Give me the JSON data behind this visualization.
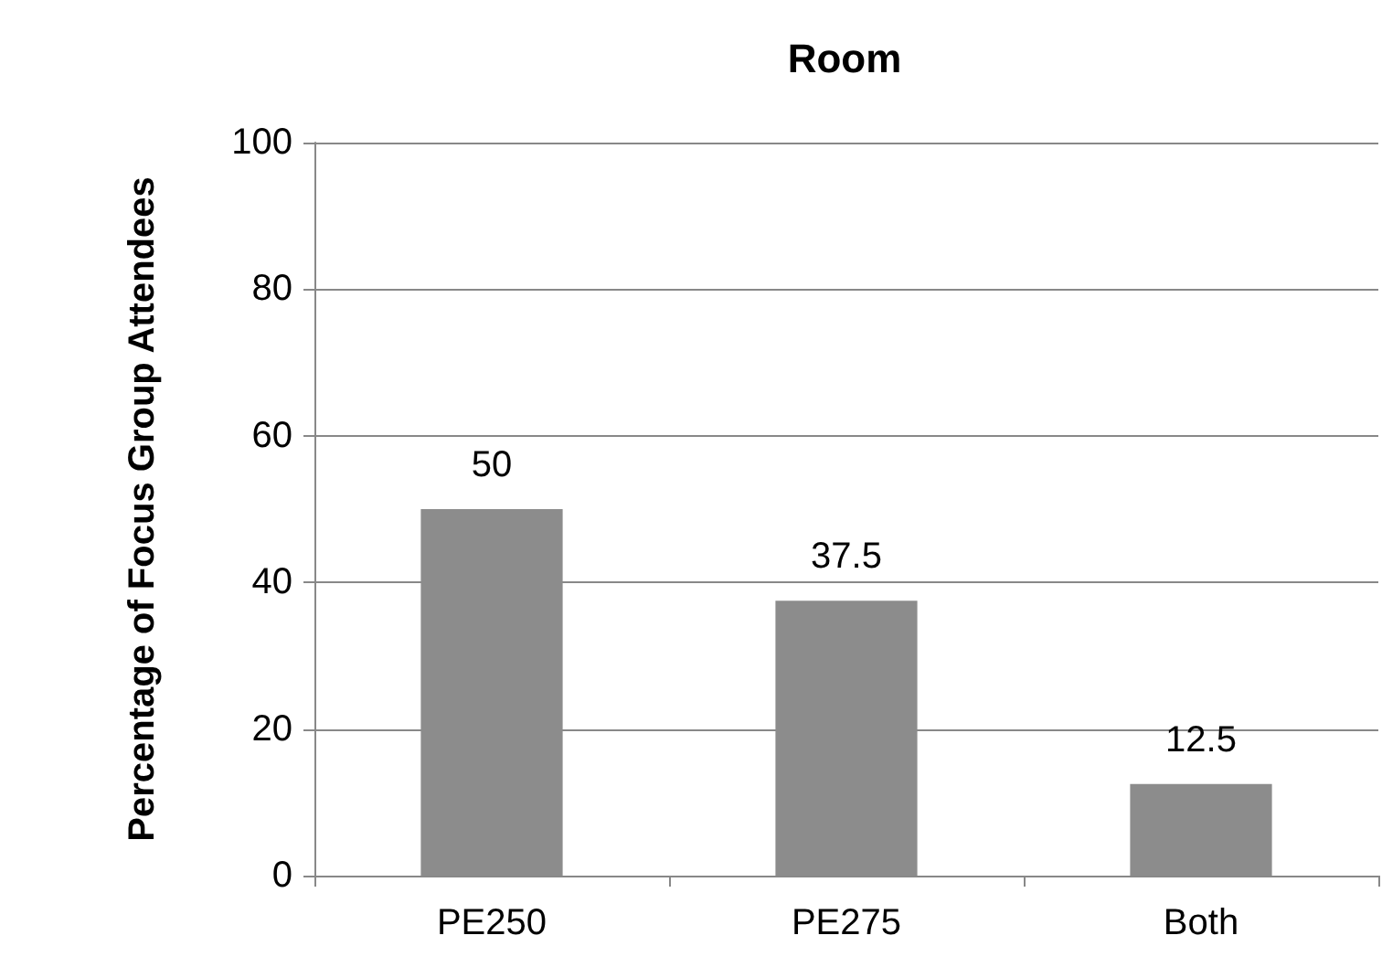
{
  "chart_data": {
    "type": "bar",
    "title": "Room",
    "ylabel": "Percentage of Focus Group Attendees",
    "categories": [
      "PE250",
      "PE275",
      "Both"
    ],
    "values": [
      50,
      37.5,
      12.5
    ],
    "color": "#8c8c8c",
    "ylim": [
      0,
      100
    ],
    "yticks": [
      0,
      20,
      40,
      60,
      80,
      100
    ],
    "grid": "y",
    "data_labels": true
  }
}
